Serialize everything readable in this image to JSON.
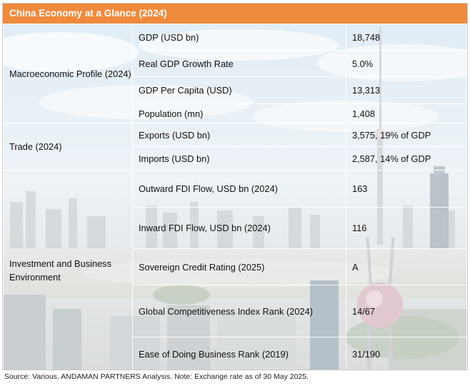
{
  "title": "China Economy at a Glance (2024)",
  "sections": [
    {
      "category": "Macroeconomic Profile (2024)",
      "rows": [
        {
          "indicator": "GDP (USD bn)",
          "value": "18,748"
        },
        {
          "indicator": "Real GDP Growth Rate",
          "value": "5.0%"
        },
        {
          "indicator": "GDP Per Capita (USD)",
          "value": "13,313"
        },
        {
          "indicator": "Population (mn)",
          "value": "1,408"
        }
      ]
    },
    {
      "category": "Trade (2024)",
      "rows": [
        {
          "indicator": "Exports (USD bn)",
          "value": "3,575, 19% of GDP"
        },
        {
          "indicator": "Imports (USD bn)",
          "value": "2,587, 14% of GDP"
        }
      ]
    },
    {
      "category": "Investment and Business Environment",
      "rows": [
        {
          "indicator": "Outward FDI Flow, USD bn (2024)",
          "value": "163"
        },
        {
          "indicator": "Inward FDI Flow, USD bn (2024)",
          "value": "116"
        },
        {
          "indicator": "Sovereign Credit Rating (2025)",
          "value": "A"
        },
        {
          "indicator": "Global Competitiveness Index Rank (2024)",
          "value": "14/67"
        },
        {
          "indicator": "Ease of Doing Business Rank (2019)",
          "value": "31/190"
        }
      ]
    }
  ],
  "source_note": "Source: Various, ANDAMAN PARTNERS Analysis. Note: Exchange rate as of 30 May 2025."
}
